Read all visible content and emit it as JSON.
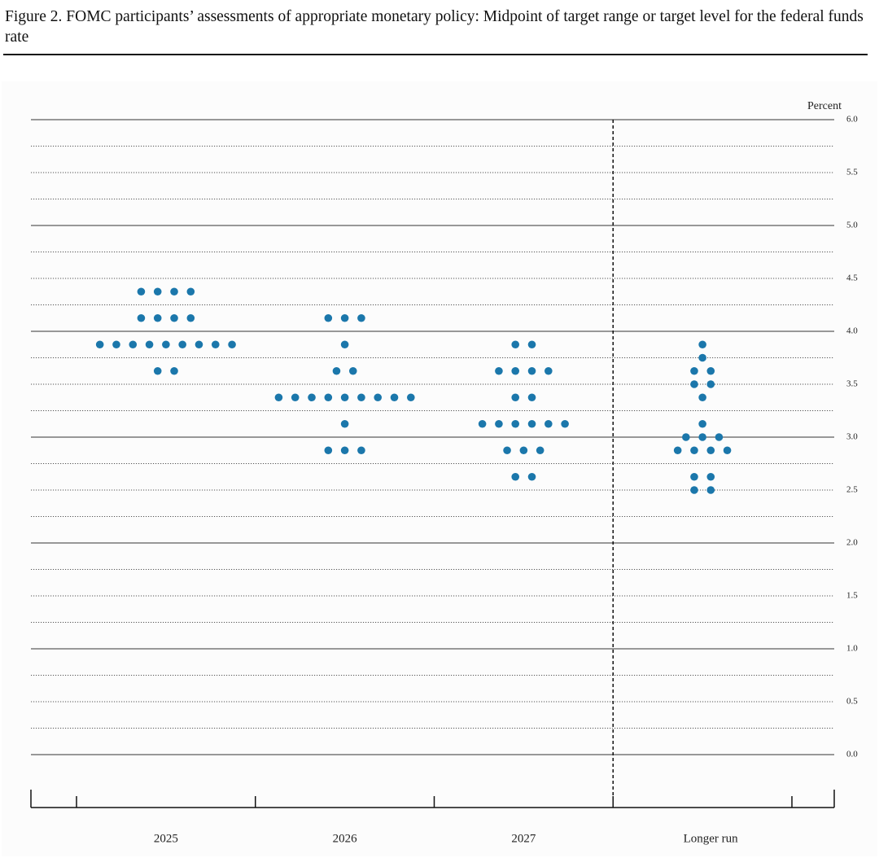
{
  "chart_data": {
    "type": "dot",
    "title": "Figure 2.  FOMC participants’ assessments of appropriate monetary policy: Midpoint of target range or target level for the federal funds rate",
    "y_label": "Percent",
    "categories": [
      "2025",
      "2026",
      "2027",
      "Longer run"
    ],
    "color": "#1b77ab",
    "dots": [
      [
        {
          "value": 4.375,
          "count": 4
        },
        {
          "value": 4.125,
          "count": 4
        },
        {
          "value": 3.875,
          "count": 9
        },
        {
          "value": 3.625,
          "count": 2
        }
      ],
      [
        {
          "value": 4.125,
          "count": 3
        },
        {
          "value": 3.875,
          "count": 1
        },
        {
          "value": 3.625,
          "count": 2
        },
        {
          "value": 3.375,
          "count": 9
        },
        {
          "value": 3.125,
          "count": 1
        },
        {
          "value": 2.875,
          "count": 3
        }
      ],
      [
        {
          "value": 3.875,
          "count": 2
        },
        {
          "value": 3.625,
          "count": 4
        },
        {
          "value": 3.375,
          "count": 2
        },
        {
          "value": 3.125,
          "count": 6
        },
        {
          "value": 2.875,
          "count": 3
        },
        {
          "value": 2.625,
          "count": 2
        }
      ],
      [
        {
          "value": 3.875,
          "count": 1
        },
        {
          "value": 3.75,
          "count": 1
        },
        {
          "value": 3.625,
          "count": 2
        },
        {
          "value": 3.5,
          "count": 2
        },
        {
          "value": 3.375,
          "count": 1
        },
        {
          "value": 3.125,
          "count": 1
        },
        {
          "value": 3.0,
          "count": 3
        },
        {
          "value": 2.875,
          "count": 4
        },
        {
          "value": 2.625,
          "count": 2
        },
        {
          "value": 2.5,
          "count": 2
        }
      ]
    ],
    "ylim": [
      -0.5,
      6.0
    ],
    "yticks": [
      {
        "value": 0,
        "label": "0.0"
      },
      0.5,
      {
        "value": 1,
        "label": "1.0"
      },
      1.5,
      {
        "value": 2,
        "label": "2.0"
      },
      2.5,
      {
        "value": 3,
        "label": "3.0"
      },
      3.5,
      {
        "value": 4,
        "label": "4.0"
      },
      4.5,
      {
        "value": 5,
        "label": "5.0"
      },
      5.5,
      {
        "value": 6,
        "label": "6.0"
      }
    ],
    "minor_yticks": [
      0.25,
      0.75,
      1.25,
      1.75,
      2.25,
      2.75,
      3.25,
      3.75,
      4.25,
      4.75,
      5.25,
      5.75
    ],
    "grid": true
  }
}
